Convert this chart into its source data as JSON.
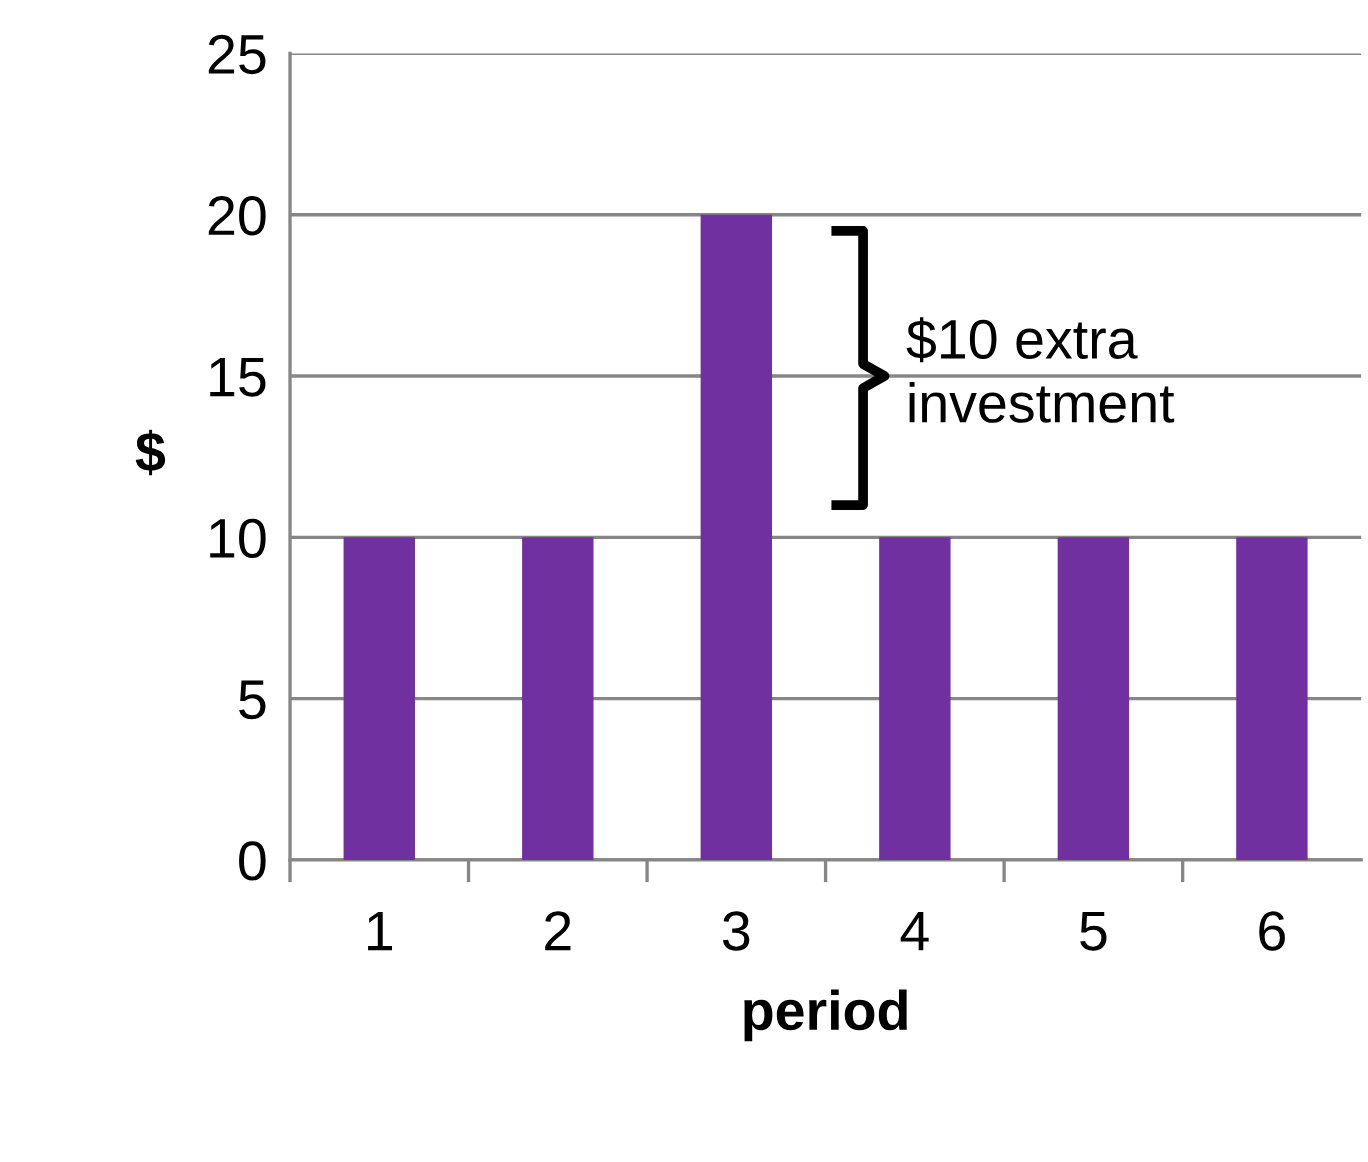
{
  "chart_data": {
    "type": "bar",
    "xlabel": "period",
    "ylabel": "$",
    "categories": [
      "1",
      "2",
      "3",
      "4",
      "5",
      "6"
    ],
    "values": [
      10,
      10,
      20,
      10,
      10,
      10
    ],
    "color": "#7030a0",
    "ylim": [
      0,
      25
    ],
    "yticks": [
      0,
      5,
      10,
      15,
      20,
      25
    ],
    "grid": "y",
    "annotations": [
      "$10 extra\ninvestment"
    ]
  }
}
